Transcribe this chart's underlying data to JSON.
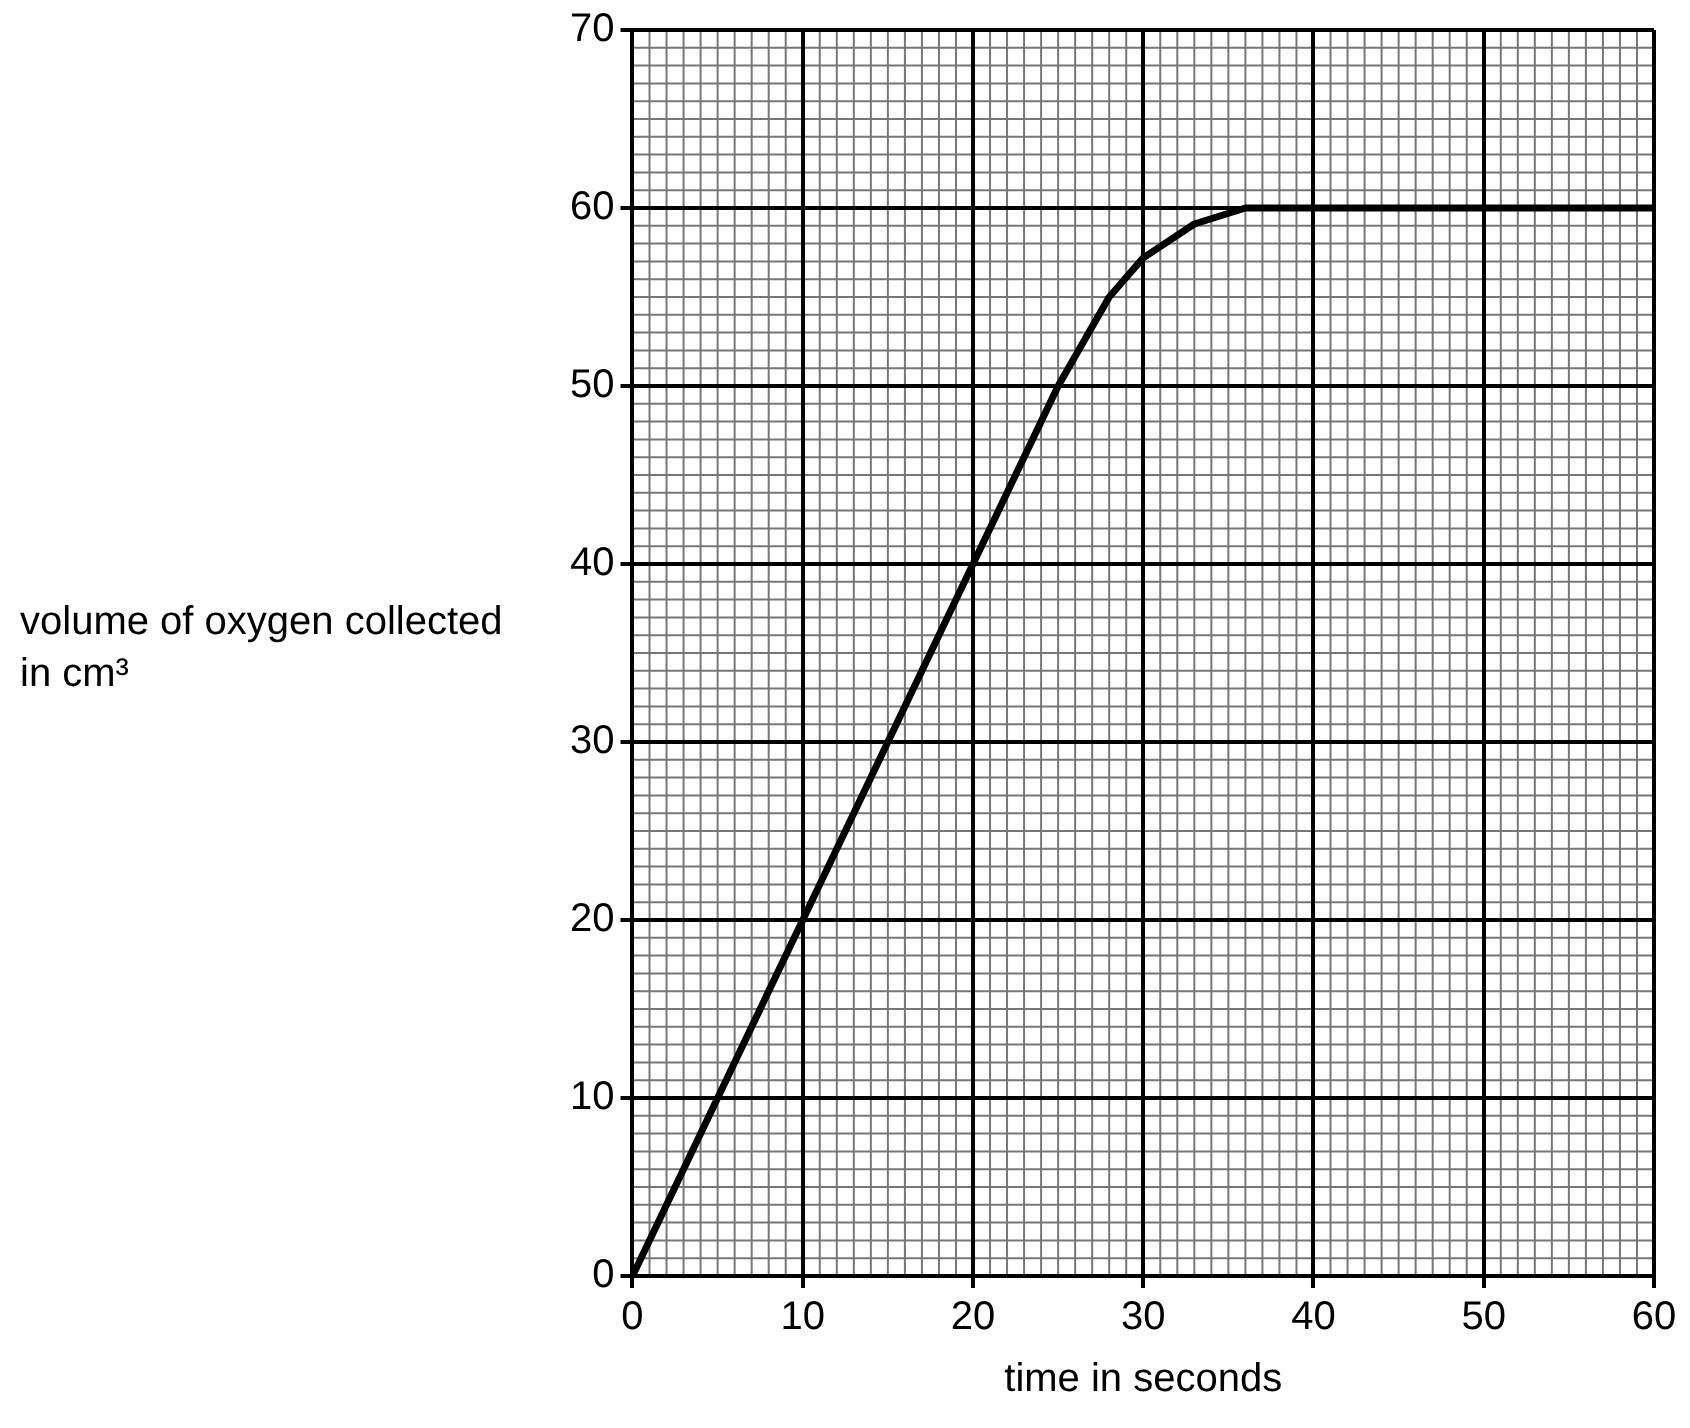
{
  "chart_data": {
    "type": "line",
    "xlabel": "time in seconds",
    "ylabel": "volume of oxygen collected in cm³",
    "x": [
      0,
      10,
      20,
      25,
      28,
      30,
      33,
      36,
      60
    ],
    "series": [
      {
        "color": "#000000",
        "values": [
          0,
          20,
          40,
          50,
          55,
          57.2,
          59.1,
          60,
          60
        ]
      }
    ],
    "xlim": [
      0,
      60
    ],
    "xticks": [
      0,
      10,
      20,
      30,
      40,
      50,
      60
    ],
    "ylim": [
      0,
      70
    ],
    "yticks": [
      0,
      10,
      20,
      30,
      40,
      50,
      60,
      70
    ],
    "grid": true,
    "marker": "none",
    "line_style": "solid"
  }
}
